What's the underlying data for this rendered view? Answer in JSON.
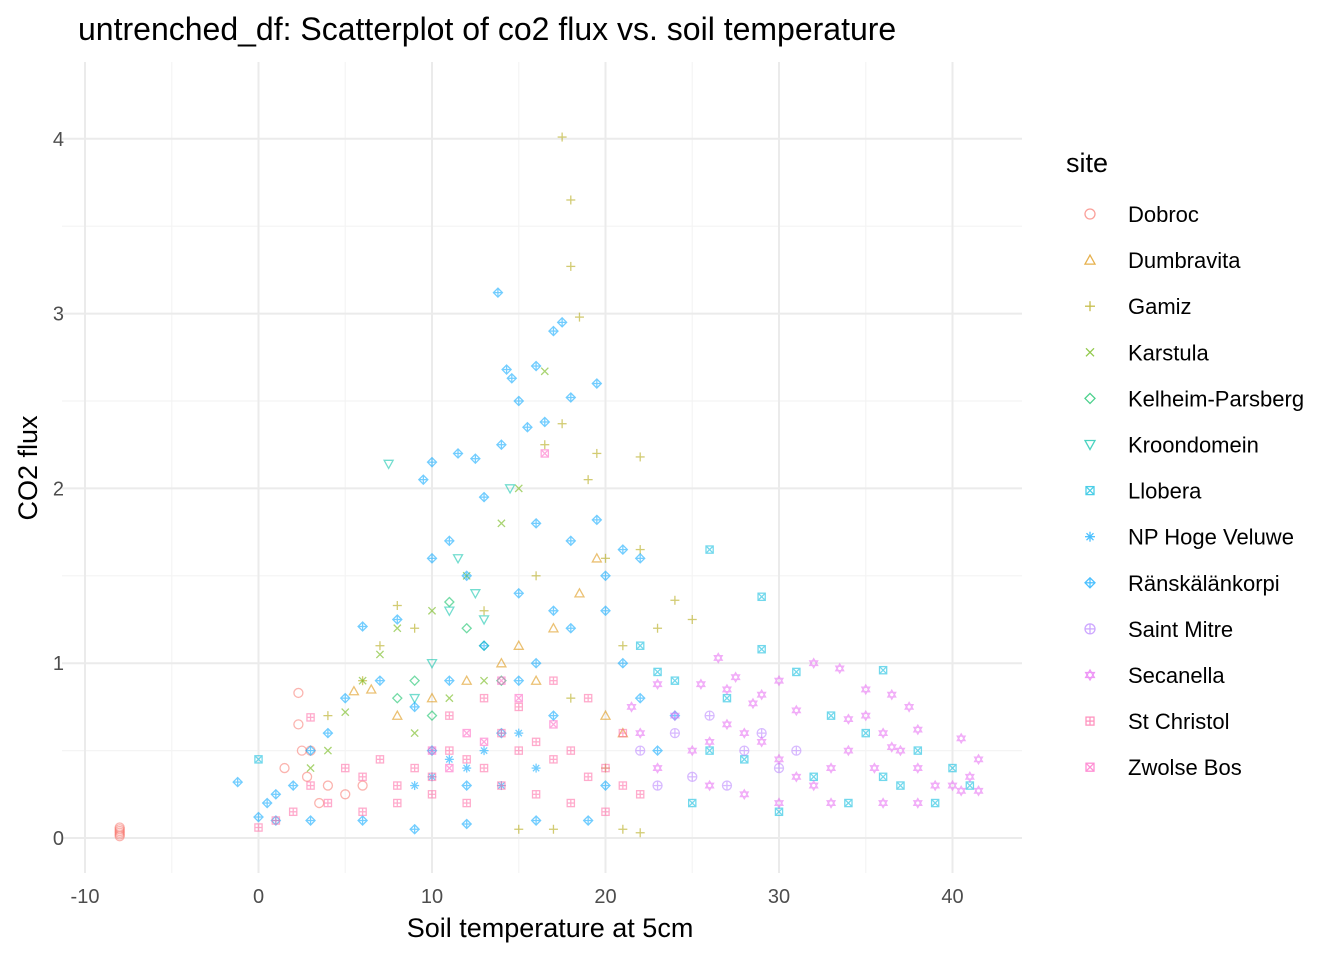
{
  "chart_data": {
    "type": "scatter",
    "title": "untrenched_df: Scatterplot of co2 flux vs. soil temperature",
    "xlabel": "Soil temperature at 5cm",
    "ylabel": "CO2 flux",
    "xlim": [
      -10.5,
      44
    ],
    "ylim": [
      -0.2,
      4.35
    ],
    "xticks": [
      -10,
      0,
      10,
      20,
      30,
      40
    ],
    "yticks": [
      0,
      1,
      2,
      3,
      4
    ],
    "grid": true,
    "legend": {
      "title": "site",
      "position": "right"
    },
    "series": [
      {
        "name": "Dobroc",
        "color": "#F8766D",
        "marker": "circle",
        "points": [
          [
            -8,
            0.01
          ],
          [
            -8,
            0.02
          ],
          [
            -8,
            0.03
          ],
          [
            -8,
            0.04
          ],
          [
            -8,
            0.05
          ],
          [
            -8,
            0.06
          ],
          [
            2.3,
            0.83
          ],
          [
            2.3,
            0.65
          ],
          [
            2.5,
            0.5
          ],
          [
            3,
            0.5
          ],
          [
            1.5,
            0.4
          ],
          [
            2.8,
            0.35
          ],
          [
            4,
            0.3
          ],
          [
            5,
            0.25
          ],
          [
            6,
            0.3
          ],
          [
            3.5,
            0.2
          ]
        ]
      },
      {
        "name": "Dumbravita",
        "color": "#DB8E00",
        "marker": "triangle",
        "points": [
          [
            5.5,
            0.84
          ],
          [
            6.5,
            0.85
          ],
          [
            19.5,
            1.6
          ],
          [
            18.5,
            1.4
          ],
          [
            17,
            1.2
          ],
          [
            15,
            1.1
          ],
          [
            12,
            0.9
          ],
          [
            10,
            0.8
          ],
          [
            8,
            0.7
          ],
          [
            14,
            1.0
          ],
          [
            16,
            0.9
          ],
          [
            20,
            0.7
          ],
          [
            21,
            0.6
          ]
        ]
      },
      {
        "name": "Gamiz",
        "color": "#AEA200",
        "marker": "plus",
        "points": [
          [
            17.5,
            4.01
          ],
          [
            18,
            3.65
          ],
          [
            18,
            3.27
          ],
          [
            18.5,
            2.98
          ],
          [
            17.5,
            2.37
          ],
          [
            16.5,
            2.25
          ],
          [
            19.5,
            2.2
          ],
          [
            22,
            2.18
          ],
          [
            19,
            2.05
          ],
          [
            20,
            1.6
          ],
          [
            22,
            1.65
          ],
          [
            24,
            1.36
          ],
          [
            25,
            1.25
          ],
          [
            23,
            1.2
          ],
          [
            21,
            1.1
          ],
          [
            8,
            1.33
          ],
          [
            7,
            1.1
          ],
          [
            9,
            1.2
          ],
          [
            6,
            0.9
          ],
          [
            4,
            0.7
          ],
          [
            15,
            0.05
          ],
          [
            17,
            0.05
          ],
          [
            21,
            0.05
          ],
          [
            22,
            0.03
          ],
          [
            18,
            0.8
          ],
          [
            16,
            1.5
          ],
          [
            13,
            1.3
          ],
          [
            20,
            0.4
          ]
        ]
      },
      {
        "name": "Karstula",
        "color": "#64B200",
        "marker": "cross",
        "points": [
          [
            16.5,
            2.67
          ],
          [
            15,
            2.0
          ],
          [
            14,
            1.8
          ],
          [
            12,
            1.5
          ],
          [
            10,
            1.3
          ],
          [
            8,
            1.2
          ],
          [
            7,
            1.05
          ],
          [
            6,
            0.9
          ],
          [
            5,
            0.72
          ],
          [
            9,
            0.6
          ],
          [
            11,
            0.8
          ],
          [
            13,
            0.9
          ],
          [
            3,
            0.4
          ],
          [
            4,
            0.5
          ]
        ]
      },
      {
        "name": "Kelheim-Parsberg",
        "color": "#00BD5C",
        "marker": "diamond",
        "points": [
          [
            11,
            1.35
          ],
          [
            12,
            1.2
          ],
          [
            13,
            1.1
          ],
          [
            9,
            0.9
          ],
          [
            8,
            0.8
          ],
          [
            10,
            0.7
          ],
          [
            14,
            0.9
          ]
        ]
      },
      {
        "name": "Kroondomein",
        "color": "#00C1A7",
        "marker": "triangle-down",
        "points": [
          [
            7.5,
            2.14
          ],
          [
            14.5,
            2.0
          ],
          [
            11.5,
            1.6
          ],
          [
            12.5,
            1.4
          ],
          [
            11,
            1.3
          ],
          [
            13,
            1.25
          ],
          [
            10,
            1.0
          ],
          [
            9,
            0.8
          ]
        ]
      },
      {
        "name": "Llobera",
        "color": "#00BADE",
        "marker": "square-x",
        "points": [
          [
            0,
            0.45
          ],
          [
            26,
            1.65
          ],
          [
            29,
            1.38
          ],
          [
            36,
            0.96
          ],
          [
            29,
            1.08
          ],
          [
            31,
            0.95
          ],
          [
            24,
            0.9
          ],
          [
            27,
            0.8
          ],
          [
            33,
            0.7
          ],
          [
            35,
            0.6
          ],
          [
            38,
            0.5
          ],
          [
            40,
            0.4
          ],
          [
            37,
            0.3
          ],
          [
            34,
            0.2
          ],
          [
            30,
            0.15
          ],
          [
            25,
            0.2
          ],
          [
            32,
            0.35
          ],
          [
            28,
            0.45
          ],
          [
            26,
            0.5
          ],
          [
            39,
            0.2
          ],
          [
            41,
            0.3
          ],
          [
            36,
            0.35
          ],
          [
            22,
            1.1
          ],
          [
            23,
            0.95
          ]
        ]
      },
      {
        "name": "NP Hoge Veluwe",
        "color": "#00A6FF",
        "marker": "asterisk",
        "points": [
          [
            12,
            0.4
          ],
          [
            13,
            0.5
          ],
          [
            14,
            0.3
          ],
          [
            10,
            0.35
          ],
          [
            11,
            0.45
          ],
          [
            15,
            0.6
          ],
          [
            9,
            0.3
          ],
          [
            16,
            0.4
          ]
        ]
      },
      {
        "name": "Ränskälänkorpi",
        "color": "#00A6FF",
        "marker": "diamond-plus",
        "points": [
          [
            13.8,
            3.12
          ],
          [
            17.5,
            2.95
          ],
          [
            17,
            2.9
          ],
          [
            14.3,
            2.68
          ],
          [
            14.6,
            2.63
          ],
          [
            16,
            2.7
          ],
          [
            15,
            2.5
          ],
          [
            19.5,
            2.6
          ],
          [
            18,
            2.52
          ],
          [
            16.5,
            2.38
          ],
          [
            15.5,
            2.35
          ],
          [
            14,
            2.25
          ],
          [
            12.5,
            2.17
          ],
          [
            11.5,
            2.2
          ],
          [
            10,
            2.15
          ],
          [
            9.5,
            2.05
          ],
          [
            13,
            1.95
          ],
          [
            16,
            1.8
          ],
          [
            18,
            1.7
          ],
          [
            19.5,
            1.82
          ],
          [
            21,
            1.65
          ],
          [
            22,
            1.6
          ],
          [
            20,
            1.5
          ],
          [
            17,
            1.3
          ],
          [
            15,
            1.4
          ],
          [
            11,
            1.7
          ],
          [
            10,
            1.6
          ],
          [
            12,
            1.5
          ],
          [
            6,
            1.21
          ],
          [
            8,
            1.25
          ],
          [
            7,
            0.9
          ],
          [
            5,
            0.8
          ],
          [
            4,
            0.6
          ],
          [
            3,
            0.5
          ],
          [
            2,
            0.3
          ],
          [
            1,
            0.25
          ],
          [
            0.5,
            0.2
          ],
          [
            -1.2,
            0.32
          ],
          [
            0,
            0.12
          ],
          [
            1,
            0.1
          ],
          [
            3,
            0.1
          ],
          [
            6,
            0.1
          ],
          [
            9,
            0.05
          ],
          [
            12,
            0.08
          ],
          [
            16,
            0.1
          ],
          [
            19,
            0.1
          ],
          [
            14,
            0.6
          ],
          [
            15,
            0.9
          ],
          [
            13,
            1.1
          ],
          [
            16,
            1.0
          ],
          [
            18,
            1.2
          ],
          [
            20,
            1.3
          ],
          [
            21,
            1.0
          ],
          [
            22,
            0.8
          ],
          [
            24,
            0.7
          ],
          [
            23,
            0.5
          ],
          [
            20,
            0.3
          ],
          [
            17,
            0.7
          ],
          [
            11,
            0.9
          ],
          [
            9,
            0.75
          ],
          [
            10,
            0.5
          ],
          [
            12,
            0.3
          ]
        ]
      },
      {
        "name": "Saint Mitre",
        "color": "#B983FF",
        "marker": "circle-plus",
        "points": [
          [
            22,
            0.5
          ],
          [
            24,
            0.6
          ],
          [
            26,
            0.7
          ],
          [
            28,
            0.5
          ],
          [
            30,
            0.4
          ],
          [
            25,
            0.35
          ],
          [
            27,
            0.3
          ],
          [
            23,
            0.3
          ],
          [
            29,
            0.6
          ],
          [
            31,
            0.5
          ]
        ]
      },
      {
        "name": "Secanella",
        "color": "#E76BF3",
        "marker": "star",
        "points": [
          [
            21.5,
            0.75
          ],
          [
            23,
            0.88
          ],
          [
            25.5,
            0.88
          ],
          [
            27,
            0.85
          ],
          [
            28.5,
            0.77
          ],
          [
            30,
            0.9
          ],
          [
            32,
            1.0
          ],
          [
            33.5,
            0.97
          ],
          [
            35,
            0.85
          ],
          [
            36.5,
            0.82
          ],
          [
            37.5,
            0.75
          ],
          [
            40.5,
            0.57
          ],
          [
            41.5,
            0.45
          ],
          [
            41,
            0.35
          ],
          [
            40,
            0.3
          ],
          [
            39,
            0.3
          ],
          [
            38,
            0.4
          ],
          [
            37,
            0.5
          ],
          [
            36,
            0.6
          ],
          [
            35,
            0.7
          ],
          [
            34,
            0.5
          ],
          [
            33,
            0.4
          ],
          [
            32,
            0.3
          ],
          [
            31,
            0.35
          ],
          [
            30,
            0.45
          ],
          [
            29,
            0.55
          ],
          [
            28,
            0.6
          ],
          [
            27,
            0.65
          ],
          [
            26,
            0.55
          ],
          [
            25,
            0.5
          ],
          [
            24,
            0.7
          ],
          [
            22,
            0.6
          ],
          [
            23,
            0.4
          ],
          [
            26,
            0.3
          ],
          [
            28,
            0.25
          ],
          [
            30,
            0.2
          ],
          [
            33,
            0.2
          ],
          [
            36,
            0.2
          ],
          [
            38,
            0.2
          ],
          [
            40.5,
            0.27
          ],
          [
            41.5,
            0.27
          ],
          [
            34,
            0.68
          ],
          [
            36.5,
            0.52
          ],
          [
            38,
            0.62
          ],
          [
            35.5,
            0.4
          ],
          [
            26.5,
            1.03
          ],
          [
            27.5,
            0.92
          ],
          [
            29,
            0.82
          ],
          [
            31,
            0.73
          ]
        ]
      },
      {
        "name": "St Christol",
        "color": "#FF67A4",
        "marker": "square-plus",
        "points": [
          [
            3,
            0.69
          ],
          [
            5,
            0.4
          ],
          [
            6,
            0.35
          ],
          [
            7,
            0.45
          ],
          [
            8,
            0.3
          ],
          [
            9,
            0.4
          ],
          [
            10,
            0.35
          ],
          [
            11,
            0.5
          ],
          [
            12,
            0.45
          ],
          [
            13,
            0.4
          ],
          [
            14,
            0.6
          ],
          [
            15,
            0.5
          ],
          [
            16,
            0.55
          ],
          [
            17,
            0.45
          ],
          [
            18,
            0.5
          ],
          [
            19,
            0.35
          ],
          [
            20,
            0.4
          ],
          [
            21,
            0.3
          ],
          [
            22,
            0.25
          ],
          [
            4,
            0.2
          ],
          [
            6,
            0.15
          ],
          [
            8,
            0.2
          ],
          [
            10,
            0.25
          ],
          [
            12,
            0.2
          ],
          [
            14,
            0.3
          ],
          [
            16,
            0.25
          ],
          [
            18,
            0.2
          ],
          [
            20,
            0.15
          ],
          [
            2,
            0.15
          ],
          [
            1,
            0.1
          ],
          [
            0,
            0.06
          ],
          [
            3,
            0.3
          ],
          [
            11,
            0.7
          ],
          [
            13,
            0.8
          ],
          [
            15,
            0.75
          ],
          [
            17,
            0.9
          ],
          [
            19,
            0.8
          ],
          [
            21,
            0.6
          ]
        ]
      },
      {
        "name": "Zwolse Bos",
        "color": "#FF61C3",
        "marker": "square-x",
        "points": [
          [
            16.5,
            2.2
          ],
          [
            14,
            0.9
          ],
          [
            15,
            0.8
          ],
          [
            12,
            0.6
          ],
          [
            10,
            0.5
          ],
          [
            13,
            0.55
          ],
          [
            17,
            0.65
          ],
          [
            11,
            0.4
          ]
        ]
      }
    ]
  }
}
